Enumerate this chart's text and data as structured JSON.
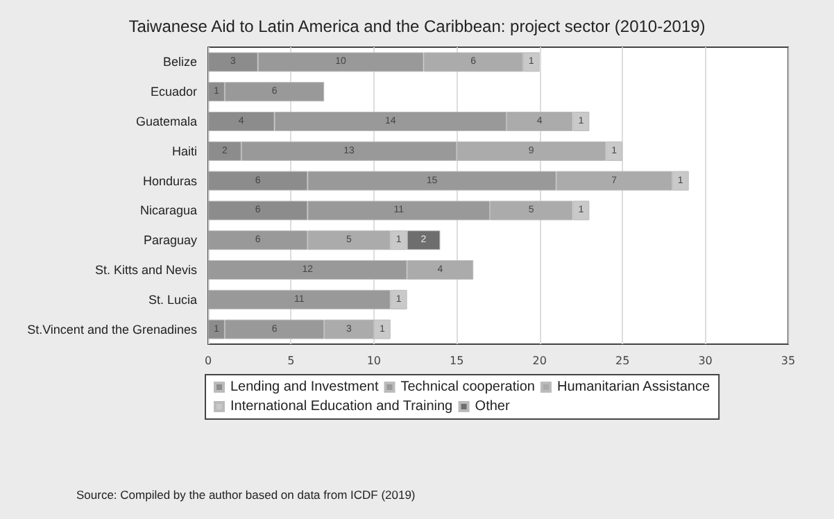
{
  "chart_data": {
    "type": "bar",
    "orientation": "horizontal",
    "stacked": true,
    "title": "Taiwanese Aid to Latin America and the Caribbean: project sector (2010-2019)",
    "categories": [
      "Belize",
      "Ecuador",
      "Guatemala",
      "Haiti",
      "Honduras",
      "Nicaragua",
      "Paraguay",
      "St. Kitts and Nevis",
      "St. Lucia",
      "St.Vincent and the Grenadines"
    ],
    "series": [
      {
        "name": "Lending and Investment",
        "color": "#8c8c8c",
        "values": [
          3,
          1,
          4,
          2,
          6,
          6,
          null,
          null,
          null,
          1
        ]
      },
      {
        "name": "Technical cooperation",
        "color": "#999999",
        "values": [
          10,
          6,
          14,
          13,
          15,
          11,
          6,
          12,
          11,
          6
        ]
      },
      {
        "name": "Humanitarian Assistance",
        "color": "#ababab",
        "values": [
          6,
          null,
          4,
          9,
          7,
          5,
          5,
          4,
          null,
          3
        ]
      },
      {
        "name": "International Education and Training",
        "color": "#c9c9c9",
        "values": [
          1,
          null,
          1,
          1,
          1,
          1,
          1,
          null,
          1,
          1
        ]
      },
      {
        "name": "Other",
        "color": "#6e6e6e",
        "values": [
          null,
          null,
          null,
          null,
          null,
          null,
          2,
          null,
          null,
          null
        ]
      }
    ],
    "xlim": [
      0,
      35
    ],
    "xticks": [
      0,
      5,
      10,
      15,
      20,
      25,
      30,
      35
    ],
    "grid": "x",
    "legend": "bottom",
    "data_labels": true,
    "annotations": [
      "Source: Compiled by the author based on data from ICDF (2019)"
    ]
  }
}
